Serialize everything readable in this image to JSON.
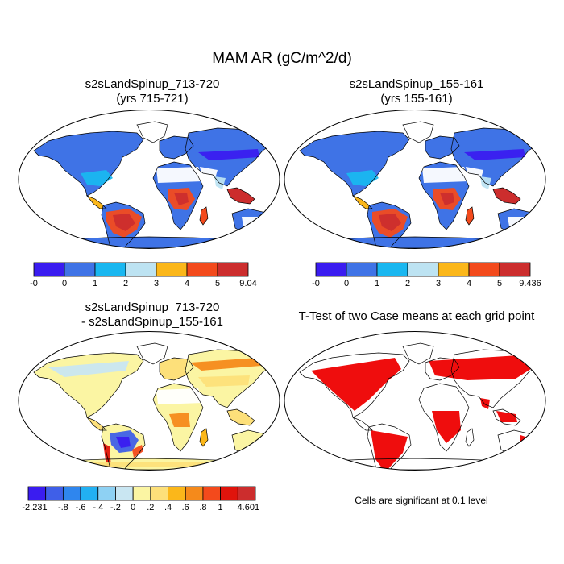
{
  "title": "MAM AR (gC/m^2/d)",
  "panels": [
    {
      "title": "s2sLandSpinup_713-720",
      "subtitle": "(yrs 715-721)"
    },
    {
      "title": "s2sLandSpinup_155-161",
      "subtitle": "(yrs 155-161)"
    },
    {
      "title": "s2sLandSpinup_713-720",
      "subtitle": "- s2sLandSpinup_155-161"
    },
    {
      "title": "T-Test of two Case means at each grid point",
      "subtitle": ""
    }
  ],
  "footnote": "Cells are significant at 0.1 level",
  "colors": {
    "ocean": "#ffffff",
    "coast": "#000000",
    "significant": "#ee0000",
    "abs_scale": [
      "#3a1cf0",
      "#3f73e6",
      "#19b7f0",
      "#bde3f2",
      "#fbb71a",
      "#f34a1c",
      "#cc2d2d"
    ],
    "diff_scale": [
      "#3a1cf0",
      "#3f5fe8",
      "#2f86ee",
      "#22b0f2",
      "#8ed1f3",
      "#c9e6f2",
      "#fbf5a3",
      "#fde07a",
      "#fbb71a",
      "#f58a1b",
      "#f34a1c",
      "#e0140c",
      "#cc2d2d"
    ]
  },
  "chart_data": [
    {
      "type": "heatmap",
      "title": "s2sLandSpinup_713-720",
      "subtitle": "(yrs 715-721)",
      "map": "global land (Robinson projection)",
      "colorbar_labels": [
        "-0",
        "0",
        "1",
        "2",
        "3",
        "4",
        "5",
        "9.04"
      ],
      "range": [
        0,
        9.04
      ],
      "regions": {
        "Amazon basin": "4-5+",
        "Congo basin": "4-5+",
        "Southeast Asia / Indonesia": "4-5+",
        "Eastern North America": "1-3",
        "Northern high latitudes": "0-1",
        "Sahara / Arabia": "0 (no data)",
        "Australia": "0-2",
        "Antarctica": "0-1"
      }
    },
    {
      "type": "heatmap",
      "title": "s2sLandSpinup_155-161",
      "subtitle": "(yrs 155-161)",
      "map": "global land (Robinson projection)",
      "colorbar_labels": [
        "-0",
        "0",
        "1",
        "2",
        "3",
        "4",
        "5",
        "9.436"
      ],
      "range": [
        0,
        9.436
      ],
      "regions": {
        "Amazon basin": "4-5+",
        "Congo basin": "4-5+",
        "Southeast Asia / Indonesia": "4-5+",
        "Eastern North America": "1-3",
        "Northern high latitudes": "0-1",
        "Sahara / Arabia": "0 (no data)",
        "Australia": "0-2",
        "Antarctica": "0-1"
      }
    },
    {
      "type": "heatmap",
      "title": "s2sLandSpinup_713-720",
      "subtitle": "- s2sLandSpinup_155-161",
      "map": "global land (Robinson projection)",
      "colorbar_labels": [
        "-2.231",
        "-.8",
        "-.6",
        "-.4",
        "-.2",
        "0",
        ".2",
        ".4",
        ".6",
        ".8",
        "1",
        "4.601"
      ],
      "range": [
        -2.231,
        4.601
      ],
      "regions": {
        "Amazon basin": "-2.231 to -0.8 (decrease)",
        "Andes / Brazil rim": "0.6-1 (increase)",
        "Northern Eurasia": "0-0.6",
        "Africa": "0-0.4",
        "Antarctica": "0-0.2"
      }
    },
    {
      "type": "heatmap",
      "title": "T-Test of two Case means at each grid point",
      "map": "global land (Robinson projection)",
      "note": "Cells are significant at 0.1 level",
      "significant_regions": [
        "North America",
        "South America",
        "Northern Eurasia",
        "Central Africa",
        "India",
        "Southeast Asia",
        "Eastern Australia"
      ]
    }
  ]
}
